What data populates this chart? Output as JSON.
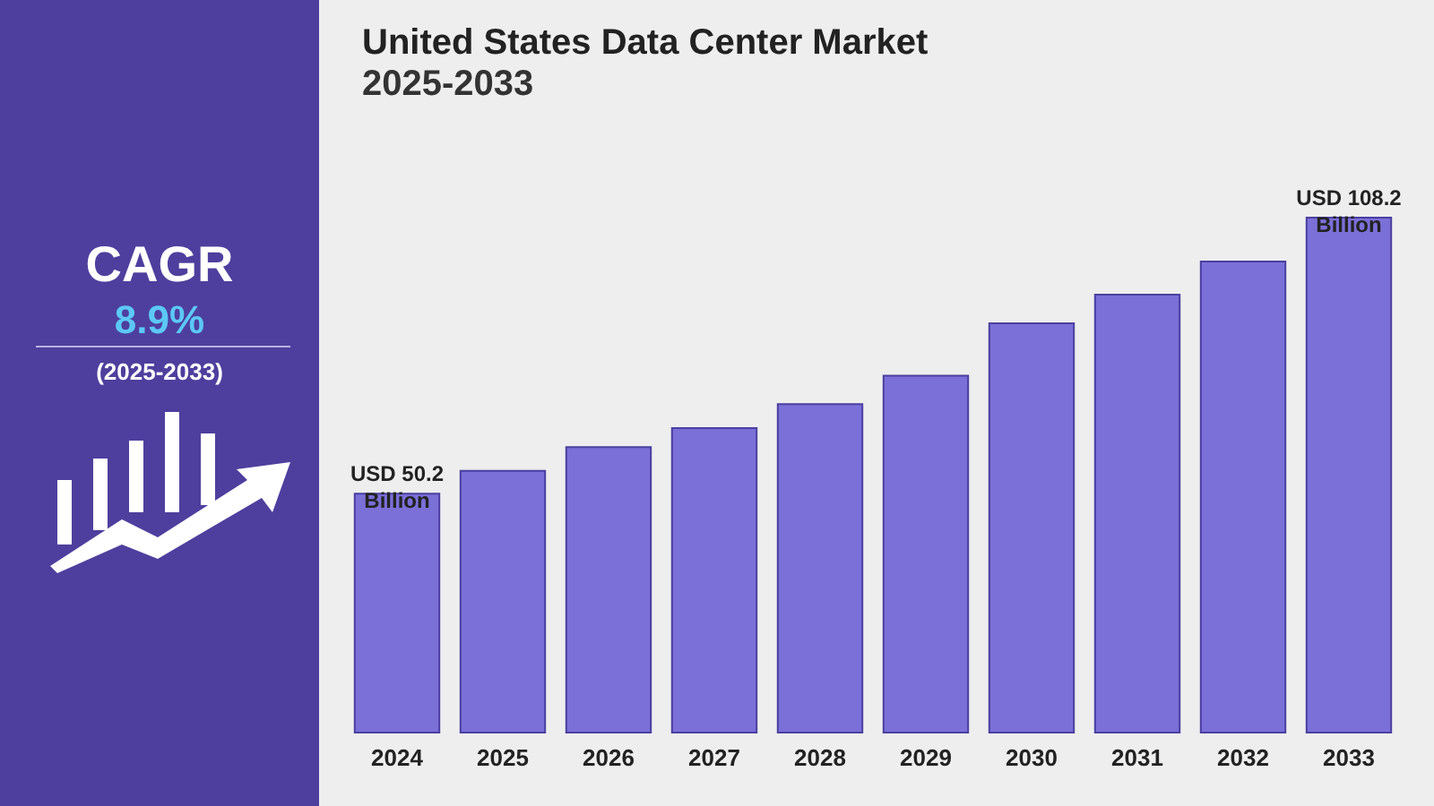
{
  "chart_data": {
    "type": "bar",
    "title": "United States Data Center Market",
    "subtitle": "2025-2033",
    "categories": [
      "2024",
      "2025",
      "2026",
      "2027",
      "2028",
      "2029",
      "2030",
      "2031",
      "2032",
      "2033"
    ],
    "values": [
      50.2,
      55,
      60,
      64,
      69,
      75,
      86,
      92,
      99,
      108.2
    ],
    "color": "#7b6fd8",
    "value_labels": [
      "USD 50.2 Billion",
      null,
      null,
      null,
      null,
      null,
      null,
      null,
      null,
      "USD 108.2 Billion"
    ],
    "annotations": [
      "CAGR",
      "8.9%",
      "(2025-2033)"
    ],
    "grid": false
  }
}
